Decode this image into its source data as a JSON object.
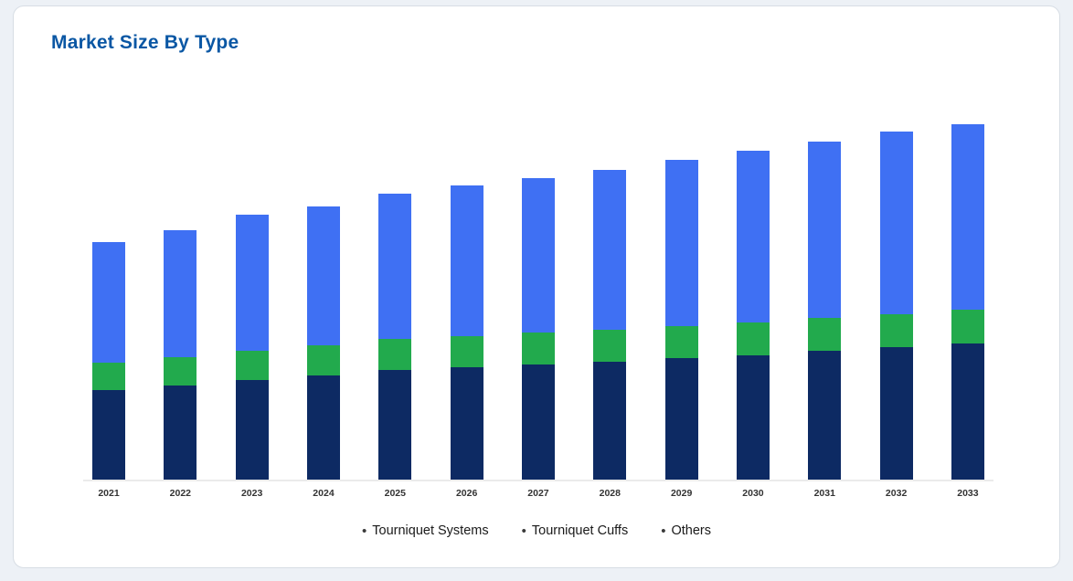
{
  "page": {
    "background": "#edf1f6"
  },
  "card": {
    "title": "Market Size By Type",
    "title_color": "#0a57a4",
    "background": "#ffffff",
    "border_color": "#d7dde4"
  },
  "chart_data": {
    "type": "bar",
    "stacked": true,
    "title": "Market Size By Type",
    "xlabel": "",
    "ylabel": "",
    "grid": false,
    "legend_position": "bottom",
    "value_units": "relative (no y-axis shown in chart)",
    "categories": [
      "2021",
      "2022",
      "2023",
      "2024",
      "2025",
      "2026",
      "2027",
      "2028",
      "2029",
      "2030",
      "2031",
      "2032",
      "2033"
    ],
    "series": [
      {
        "name": "Tourniquet Systems",
        "color": "#0d2a63",
        "values": [
          98,
          103,
          109,
          114,
          120,
          123,
          126,
          129,
          133,
          136,
          141,
          145,
          150
        ]
      },
      {
        "name": "Tourniquet Cuffs",
        "color": "#22aa4d",
        "values": [
          30,
          31,
          32,
          33,
          34,
          34,
          35,
          35,
          35,
          36,
          36,
          36,
          37
        ]
      },
      {
        "name": "Others",
        "color": "#3f70f3",
        "values": [
          132,
          139,
          149,
          152,
          159,
          165,
          169,
          175,
          182,
          188,
          193,
          200,
          204
        ]
      }
    ]
  },
  "legend": {
    "marker": "•",
    "items": [
      "Tourniquet Systems",
      "Tourniquet Cuffs",
      "Others"
    ]
  },
  "axis": {
    "label_color": "#333333",
    "baseline_color": "#ebebeb"
  }
}
